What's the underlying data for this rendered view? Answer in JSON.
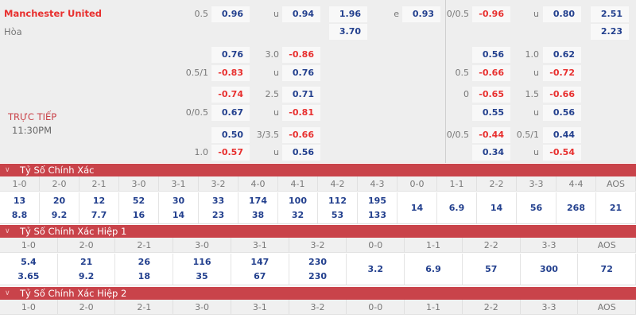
{
  "match": {
    "team": "Manchester United",
    "draw": "Hòa",
    "status": "TRỰC TIẾP",
    "time": "11:30PM"
  },
  "odds_rows": [
    {
      "ft": [
        "0.5",
        "0.96",
        "u",
        "0.94",
        "1.96",
        "e",
        "0.93"
      ],
      "h1": [
        "0/0.5",
        "-0.96",
        "u",
        "0.80",
        "2.51"
      ]
    },
    {
      "ft": [
        "",
        "",
        "",
        "",
        "3.70",
        "",
        ""
      ],
      "h1": [
        "",
        "",
        "",
        "",
        "2.23"
      ]
    },
    {
      "ft": [
        "",
        "0.76",
        "3.0",
        "-0.86",
        "",
        "",
        ""
      ],
      "h1": [
        "",
        "0.56",
        "1.0",
        "0.62",
        ""
      ]
    },
    {
      "ft": [
        "0.5/1",
        "-0.83",
        "u",
        "0.76",
        "",
        "",
        ""
      ],
      "h1": [
        "0.5",
        "-0.66",
        "u",
        "-0.72",
        ""
      ]
    },
    {
      "ft": [
        "",
        "-0.74",
        "2.5",
        "0.71",
        "",
        "",
        ""
      ],
      "h1": [
        "0",
        "-0.65",
        "1.5",
        "-0.66",
        ""
      ]
    },
    {
      "ft": [
        "0/0.5",
        "0.67",
        "u",
        "-0.81",
        "",
        "",
        ""
      ],
      "h1": [
        "",
        "0.55",
        "u",
        "0.56",
        ""
      ]
    },
    {
      "ft": [
        "",
        "0.50",
        "3/3.5",
        "-0.66",
        "",
        "",
        ""
      ],
      "h1": [
        "0/0.5",
        "-0.44",
        "0.5/1",
        "0.44",
        ""
      ]
    },
    {
      "ft": [
        "1.0",
        "-0.57",
        "u",
        "0.56",
        "",
        "",
        ""
      ],
      "h1": [
        "",
        "0.34",
        "u",
        "-0.54",
        ""
      ]
    }
  ],
  "colors": {
    "positive": "#23408e",
    "negative": "#e8302f",
    "section_header": "#c9434a"
  },
  "sections": [
    {
      "title": "Tỷ Số Chính Xác",
      "icon": "chevron-down-icon",
      "headers": [
        "1-0",
        "2-0",
        "2-1",
        "3-0",
        "3-1",
        "3-2",
        "4-0",
        "4-1",
        "4-2",
        "4-3",
        "0-0",
        "1-1",
        "2-2",
        "3-3",
        "4-4",
        "AOS"
      ],
      "values": [
        [
          "13",
          "8.8"
        ],
        [
          "20",
          "9.2"
        ],
        [
          "12",
          "7.7"
        ],
        [
          "52",
          "16"
        ],
        [
          "30",
          "14"
        ],
        [
          "33",
          "23"
        ],
        [
          "174",
          "38"
        ],
        [
          "100",
          "32"
        ],
        [
          "112",
          "53"
        ],
        [
          "195",
          "133"
        ],
        [
          "14"
        ],
        [
          "6.9"
        ],
        [
          "14"
        ],
        [
          "56"
        ],
        [
          "268"
        ],
        [
          "21"
        ]
      ]
    },
    {
      "title": "Tỷ Số Chính Xác Hiệp 1",
      "icon": "chevron-down-icon",
      "headers": [
        "1-0",
        "2-0",
        "2-1",
        "3-0",
        "3-1",
        "3-2",
        "0-0",
        "1-1",
        "2-2",
        "3-3",
        "AOS"
      ],
      "values": [
        [
          "5.4",
          "3.65"
        ],
        [
          "21",
          "9.2"
        ],
        [
          "26",
          "18"
        ],
        [
          "116",
          "35"
        ],
        [
          "147",
          "67"
        ],
        [
          "230",
          "230"
        ],
        [
          "3.2"
        ],
        [
          "6.9"
        ],
        [
          "57"
        ],
        [
          "300"
        ],
        [
          "72"
        ]
      ]
    },
    {
      "title": "Tỷ Số Chính Xác Hiệp 2",
      "icon": "chevron-down-icon",
      "headers": [
        "1-0",
        "2-0",
        "2-1",
        "3-0",
        "3-1",
        "3-2",
        "0-0",
        "1-1",
        "2-2",
        "3-3",
        "AOS"
      ],
      "values": []
    }
  ]
}
